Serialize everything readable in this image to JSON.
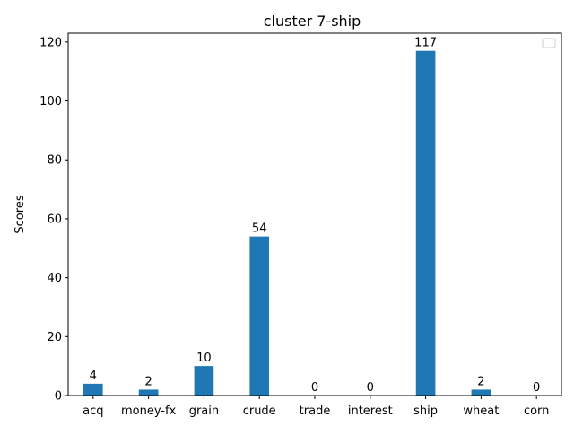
{
  "chart_data": {
    "type": "bar",
    "title": "cluster 7-ship",
    "xlabel": "",
    "ylabel": "Scores",
    "categories": [
      "acq",
      "money-fx",
      "grain",
      "crude",
      "trade",
      "interest",
      "ship",
      "wheat",
      "corn"
    ],
    "values": [
      4,
      2,
      10,
      54,
      0,
      0,
      117,
      2,
      0
    ],
    "ylim": [
      0,
      123
    ],
    "yticks": [
      0,
      20,
      40,
      60,
      80,
      100,
      120
    ],
    "grid": false,
    "legend": {
      "placement": "top-right",
      "entries": []
    },
    "colors": {
      "bar": "#1f77b4",
      "axis": "#000000",
      "background": "#ffffff"
    }
  }
}
